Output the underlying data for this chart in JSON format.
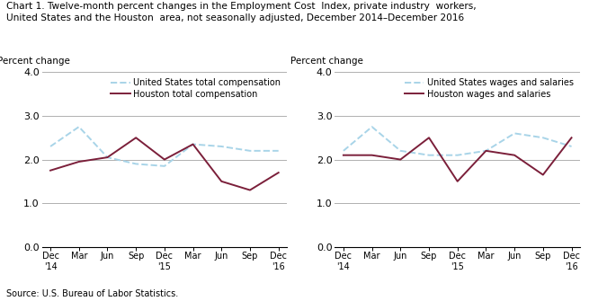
{
  "title_line1": "Chart 1. Twelve-month percent changes in the Employment Cost  Index, private industry  workers,",
  "title_line2": "United States and the Houston  area, not seasonally adjusted, December 2014–December 2016",
  "source": "Source: U.S. Bureau of Labor Statistics.",
  "ylabel": "Percent change",
  "x_labels": [
    "Dec\n'14",
    "Mar",
    "Jun",
    "Sep",
    "Dec\n'15",
    "Mar",
    "Jun",
    "Sep",
    "Dec\n'16"
  ],
  "x_positions": [
    0,
    1,
    2,
    3,
    4,
    5,
    6,
    7,
    8
  ],
  "left_chart": {
    "us_label": "United States total compensation",
    "houston_label": "Houston total compensation",
    "us_values": [
      2.3,
      2.75,
      2.05,
      1.9,
      1.85,
      2.35,
      2.3,
      2.2,
      2.2
    ],
    "houston_values": [
      1.75,
      1.95,
      2.05,
      2.5,
      2.0,
      2.35,
      1.5,
      1.3,
      1.7
    ]
  },
  "right_chart": {
    "us_label": "United States wages and salaries",
    "houston_label": "Houston wages and salaries",
    "us_values": [
      2.2,
      2.75,
      2.2,
      2.1,
      2.1,
      2.2,
      2.6,
      2.5,
      2.3
    ],
    "houston_values": [
      2.1,
      2.1,
      2.0,
      2.5,
      1.5,
      2.2,
      2.1,
      1.65,
      2.5
    ]
  },
  "us_color": "#a8d4e8",
  "houston_color": "#7b1f3a",
  "ylim": [
    0.0,
    4.0
  ],
  "yticks": [
    0.0,
    1.0,
    2.0,
    3.0,
    4.0
  ],
  "grid_color": "#b0b0b0",
  "figsize": [
    6.65,
    3.35
  ],
  "dpi": 100
}
